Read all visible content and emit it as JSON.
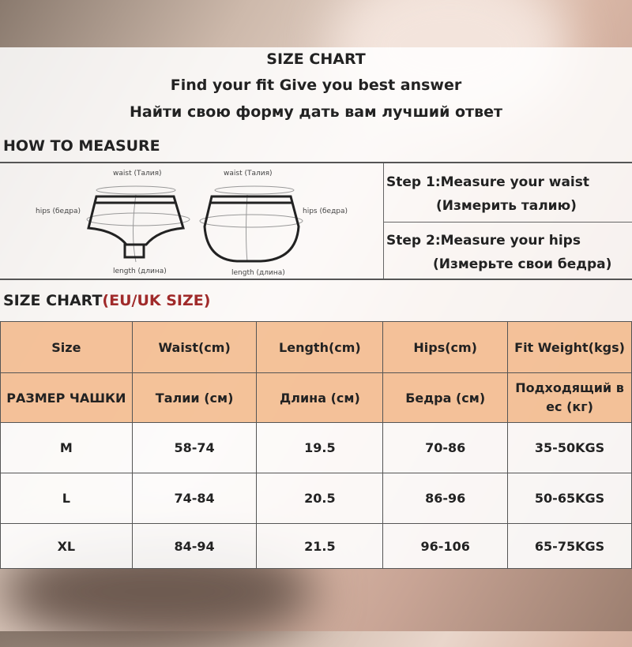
{
  "header": {
    "title": "SIZE CHART",
    "subtitle_en": "Find your fit Give you best answer",
    "subtitle_ru": "Найти свою форму дать вам лучший ответ"
  },
  "how_to_measure": {
    "heading": "HOW TO MEASURE",
    "labels": {
      "waist": "waist (Талия)",
      "hips": "hips (бедра)",
      "length": "length (длина)"
    },
    "step1": "Step 1:Measure your waist",
    "step1_ru": "(Измерить талию)",
    "step2": "Step 2:Measure your hips",
    "step2_ru": "(Измерьте свои бедра)"
  },
  "size_chart": {
    "heading": "SIZE CHART",
    "heading_accent": "(EU/UK SIZE)",
    "accent_color": "#a02a2a",
    "header_en": [
      "Size",
      "Waist(cm)",
      "Length(cm)",
      "Hips(cm)",
      "Fit  Weight(kgs)"
    ],
    "header_ru": [
      "РАЗМЕР ЧАШКИ",
      "Талии (см)",
      "Длина (см)",
      "Бедра (см)",
      "Подходящий в ес (кг)"
    ],
    "rows": [
      [
        "M",
        "58-74",
        "19.5",
        "70-86",
        "35-50KGS"
      ],
      [
        "L",
        "74-84",
        "20.5",
        "86-96",
        "50-65KGS"
      ],
      [
        "XL",
        "84-94",
        "21.5",
        "96-106",
        "65-75KGS"
      ]
    ]
  }
}
